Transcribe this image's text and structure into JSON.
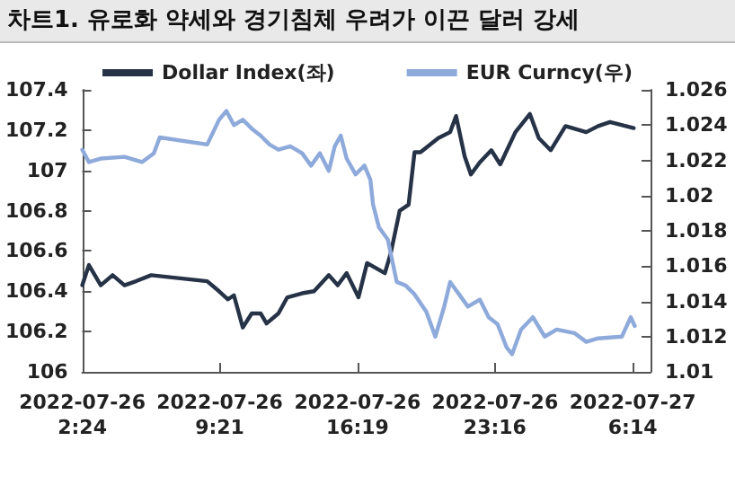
{
  "chart_data": {
    "type": "line",
    "title": "차트1. 유로화 약세와 경기침체 우려가 이끈 달러 강세",
    "xlim": [
      "2022-07-26T02:24",
      "2022-07-27T07:08"
    ],
    "xticks": [
      {
        "value": "2022-07-26T02:24",
        "label": "2022-07-26 2:24"
      },
      {
        "value": "2022-07-26T09:21",
        "label": "2022-07-26 9:21"
      },
      {
        "value": "2022-07-26T16:19",
        "label": "2022-07-26 16:19"
      },
      {
        "value": "2022-07-26T23:16",
        "label": "2022-07-26 23:16"
      },
      {
        "value": "2022-07-27T06:14",
        "label": "2022-07-27 6:14"
      }
    ],
    "ylim": [
      106,
      107.4
    ],
    "yticks": [
      106,
      106.2,
      106.4,
      106.6,
      106.8,
      107,
      107.2,
      107.4
    ],
    "y2lim": [
      1.01,
      1.026
    ],
    "y2ticks": [
      1.01,
      1.012,
      1.014,
      1.016,
      1.018,
      1.02,
      1.022,
      1.024,
      1.026
    ],
    "grid": false,
    "legend": "top",
    "marker": "none",
    "line_style": "solid",
    "series": [
      {
        "name": "Dollar Index(좌)",
        "color": "#263347",
        "x": [
          "2022-07-26T02:24",
          "2022-07-26T02:44",
          "2022-07-26T03:20",
          "2022-07-26T03:56",
          "2022-07-26T04:32",
          "2022-07-26T05:07",
          "2022-07-26T05:53",
          "2022-07-26T08:43",
          "2022-07-26T09:19",
          "2022-07-26T09:46",
          "2022-07-26T10:04",
          "2022-07-26T10:31",
          "2022-07-26T10:58",
          "2022-07-26T11:25",
          "2022-07-26T11:43",
          "2022-07-26T12:19",
          "2022-07-26T12:46",
          "2022-07-26T13:31",
          "2022-07-26T14:07",
          "2022-07-26T14:52",
          "2022-07-26T15:19",
          "2022-07-26T15:46",
          "2022-07-26T16:22",
          "2022-07-26T16:48",
          "2022-07-26T17:42",
          "2022-07-26T18:00",
          "2022-07-26T18:27",
          "2022-07-26T18:54",
          "2022-07-26T19:12",
          "2022-07-26T19:30",
          "2022-07-26T20:24",
          "2022-07-26T21:00",
          "2022-07-26T21:18",
          "2022-07-26T21:44",
          "2022-07-26T22:03",
          "2022-07-26T22:30",
          "2022-07-26T23:05",
          "2022-07-26T23:32",
          "2022-07-27T00:18",
          "2022-07-27T01:02",
          "2022-07-27T01:29",
          "2022-07-27T02:05",
          "2022-07-27T02:50",
          "2022-07-27T03:53",
          "2022-07-27T04:29",
          "2022-07-27T05:05",
          "2022-07-27T06:17"
        ],
        "values": [
          106.43,
          106.53,
          106.43,
          106.48,
          106.43,
          106.45,
          106.48,
          106.45,
          106.4,
          106.36,
          106.38,
          106.22,
          106.29,
          106.29,
          106.24,
          106.29,
          106.37,
          106.39,
          106.4,
          106.48,
          106.43,
          106.49,
          106.37,
          106.54,
          106.49,
          106.59,
          106.8,
          106.83,
          107.09,
          107.09,
          107.16,
          107.19,
          107.27,
          107.07,
          106.98,
          107.04,
          107.1,
          107.03,
          107.19,
          107.28,
          107.16,
          107.1,
          107.22,
          107.19,
          107.22,
          107.24,
          107.21
        ]
      },
      {
        "name": "EUR Curncy(우)",
        "color": "#8eaadb",
        "axis": "y2",
        "x": [
          "2022-07-26T02:24",
          "2022-07-26T02:44",
          "2022-07-26T03:20",
          "2022-07-26T04:32",
          "2022-07-26T05:25",
          "2022-07-26T06:01",
          "2022-07-26T06:19",
          "2022-07-26T08:43",
          "2022-07-26T09:19",
          "2022-07-26T09:41",
          "2022-07-26T10:04",
          "2022-07-26T10:31",
          "2022-07-26T10:58",
          "2022-07-26T11:25",
          "2022-07-26T11:52",
          "2022-07-26T12:19",
          "2022-07-26T12:55",
          "2022-07-26T13:31",
          "2022-07-26T13:58",
          "2022-07-26T14:25",
          "2022-07-26T14:52",
          "2022-07-26T15:10",
          "2022-07-26T15:28",
          "2022-07-26T15:46",
          "2022-07-26T16:13",
          "2022-07-26T16:40",
          "2022-07-26T16:58",
          "2022-07-26T17:06",
          "2022-07-26T17:24",
          "2022-07-26T17:51",
          "2022-07-26T18:18",
          "2022-07-26T18:45",
          "2022-07-26T19:12",
          "2022-07-26T19:48",
          "2022-07-26T20:15",
          "2022-07-26T20:42",
          "2022-07-26T21:00",
          "2022-07-26T21:27",
          "2022-07-26T21:54",
          "2022-07-26T22:30",
          "2022-07-26T22:57",
          "2022-07-26T23:24",
          "2022-07-26T23:51",
          "2022-07-27T00:08",
          "2022-07-27T00:35",
          "2022-07-27T01:11",
          "2022-07-27T01:47",
          "2022-07-27T02:23",
          "2022-07-27T03:17",
          "2022-07-27T03:53",
          "2022-07-27T04:29",
          "2022-07-27T05:41",
          "2022-07-27T06:08",
          "2022-07-27T06:20"
        ],
        "values": [
          1.0226,
          1.0219,
          1.0221,
          1.0222,
          1.0219,
          1.0224,
          1.0233,
          1.0229,
          1.0243,
          1.0248,
          1.024,
          1.0243,
          1.0238,
          1.0234,
          1.0229,
          1.0226,
          1.0228,
          1.0224,
          1.0217,
          1.0224,
          1.0214,
          1.0228,
          1.0234,
          1.0221,
          1.0212,
          1.0217,
          1.0209,
          1.0195,
          1.0182,
          1.0175,
          1.0151,
          1.0149,
          1.0144,
          1.0134,
          1.012,
          1.0137,
          1.0151,
          1.0144,
          1.0137,
          1.0141,
          1.0131,
          1.0127,
          1.0114,
          1.011,
          1.0124,
          1.0131,
          1.012,
          1.0124,
          1.0122,
          1.0117,
          1.0119,
          1.012,
          1.0131,
          1.0126
        ]
      }
    ]
  }
}
